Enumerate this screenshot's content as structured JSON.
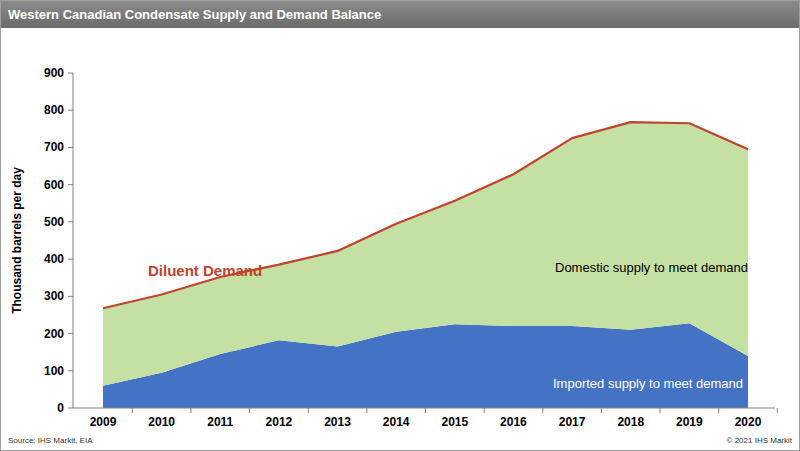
{
  "chart_data": {
    "type": "area",
    "title": "Western Canadian Condensate Supply and Demand Balance",
    "y_label": "Thousand barrels per day",
    "annotations": [
      "Source: IHS Markit, EIA",
      "© 2021 IHS Markit"
    ],
    "categories": [
      "2009",
      "2010",
      "2011",
      "2012",
      "2013",
      "2014",
      "2015",
      "2016",
      "2017",
      "2018",
      "2019",
      "2020"
    ],
    "stacked": true,
    "grid": false,
    "series": [
      {
        "name": "Imported supply to meet demand",
        "type": "area",
        "color": "#4472c4",
        "values": [
          60,
          95,
          145,
          182,
          165,
          205,
          225,
          220,
          220,
          210,
          228,
          140
        ]
      },
      {
        "name": "Domestic supply to meet demand",
        "type": "area",
        "color": "#c4e0a3",
        "values": [
          208,
          210,
          207,
          203,
          257,
          290,
          332,
          408,
          505,
          558,
          537,
          555
        ]
      },
      {
        "name": "Diluent Demand",
        "type": "line",
        "color": "#c0432c",
        "values": [
          268,
          305,
          352,
          385,
          422,
          495,
          557,
          628,
          725,
          768,
          765,
          695
        ]
      }
    ],
    "ylim": [
      0,
      900
    ],
    "yticks": [
      0,
      100,
      200,
      300,
      400,
      500,
      600,
      700,
      800,
      900
    ]
  }
}
